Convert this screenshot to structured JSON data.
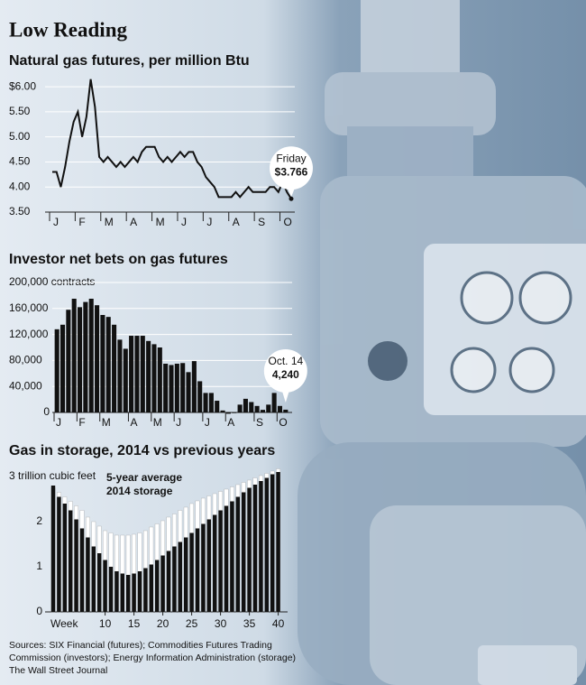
{
  "header": {
    "title": "Low Reading"
  },
  "chart_data": [
    {
      "type": "line",
      "title": "Natural gas futures, per million Btu",
      "categories": [
        "J",
        null,
        null,
        null,
        null,
        null,
        "F",
        null,
        null,
        null,
        null,
        null,
        "M",
        null,
        null,
        null,
        null,
        null,
        "A",
        null,
        null,
        null,
        null,
        null,
        "M",
        null,
        null,
        null,
        null,
        null,
        "J",
        null,
        null,
        null,
        null,
        null,
        "J",
        null,
        null,
        null,
        null,
        null,
        "A",
        null,
        null,
        null,
        null,
        null,
        "S",
        null,
        null,
        null,
        null,
        null,
        "O",
        null,
        null
      ],
      "values": [
        4.3,
        4.3,
        4.0,
        4.4,
        4.9,
        5.3,
        5.5,
        5.0,
        5.4,
        6.15,
        5.6,
        4.6,
        4.5,
        4.6,
        4.5,
        4.4,
        4.5,
        4.4,
        4.5,
        4.6,
        4.5,
        4.7,
        4.8,
        4.8,
        4.8,
        4.6,
        4.5,
        4.6,
        4.5,
        4.6,
        4.7,
        4.6,
        4.7,
        4.7,
        4.5,
        4.4,
        4.2,
        4.1,
        4.0,
        3.8,
        3.8,
        3.8,
        3.8,
        3.9,
        3.8,
        3.9,
        4.0,
        3.9,
        3.9,
        3.9,
        3.9,
        4.0,
        4.0,
        3.9,
        4.1,
        3.9,
        3.766
      ],
      "color": "#111111",
      "ylim": [
        3.5,
        6.2
      ],
      "yticks": [
        {
          "value": 6,
          "label": "$6.00"
        },
        {
          "value": 5.5,
          "label": "5.50"
        },
        {
          "value": 5,
          "label": "5.00"
        },
        {
          "value": 4.5,
          "label": "4.50"
        },
        {
          "value": 4,
          "label": "4.00"
        },
        {
          "value": 3.5,
          "label": "3.50"
        }
      ],
      "grid": true,
      "annotation": "Friday",
      "last_value_label": "$3.766"
    },
    {
      "type": "bar",
      "title": "Investor net bets on gas futures",
      "categories": [
        "J",
        null,
        null,
        null,
        "F",
        null,
        null,
        null,
        "M",
        null,
        null,
        null,
        null,
        "A",
        null,
        null,
        null,
        "M",
        null,
        null,
        null,
        "J",
        null,
        null,
        null,
        null,
        "J",
        null,
        null,
        null,
        "A",
        null,
        null,
        null,
        null,
        "S",
        null,
        null,
        null,
        "O",
        null
      ],
      "values": [
        128000,
        135000,
        158000,
        175000,
        162000,
        170000,
        175000,
        165000,
        150000,
        147000,
        135000,
        112000,
        98000,
        118000,
        118000,
        118000,
        110000,
        105000,
        100000,
        75000,
        73000,
        75000,
        76000,
        62000,
        79000,
        48000,
        30000,
        30000,
        18000,
        3000,
        -2000,
        -1000,
        12000,
        21000,
        16000,
        10000,
        4000,
        12000,
        30000,
        10000,
        4240
      ],
      "color": "#111111",
      "ylim": [
        0,
        200000
      ],
      "yticks": [
        {
          "value": 200000,
          "label": "200,000 contracts"
        },
        {
          "value": 160000,
          "label": "160,000"
        },
        {
          "value": 120000,
          "label": "120,000"
        },
        {
          "value": 80000,
          "label": "80,000"
        },
        {
          "value": 40000,
          "label": "40,000"
        },
        0
      ],
      "grid": true,
      "annotation": "Oct. 14",
      "last_value_label": "4,240"
    },
    {
      "type": "bar",
      "title": "Gas in storage, 2014 vs previous years",
      "barmode": "overlay",
      "x": [
        1,
        2,
        3,
        4,
        5,
        6,
        7,
        8,
        9,
        10,
        11,
        12,
        13,
        14,
        15,
        16,
        17,
        18,
        19,
        20,
        21,
        22,
        23,
        24,
        25,
        26,
        27,
        28,
        29,
        30,
        31,
        32,
        33,
        34,
        35,
        36,
        37,
        38,
        39,
        40
      ],
      "series": [
        {
          "name": "5-year average",
          "color": "#ffffff",
          "values": [
            2.75,
            2.65,
            2.55,
            2.45,
            2.35,
            2.25,
            2.1,
            2.0,
            1.9,
            1.8,
            1.75,
            1.7,
            1.7,
            1.7,
            1.72,
            1.75,
            1.8,
            1.88,
            1.95,
            2.02,
            2.1,
            2.17,
            2.25,
            2.32,
            2.4,
            2.46,
            2.52,
            2.57,
            2.62,
            2.67,
            2.72,
            2.77,
            2.82,
            2.87,
            2.92,
            2.97,
            3.02,
            3.07,
            3.12,
            3.17
          ]
        },
        {
          "name": "2014 storage",
          "color": "#111111",
          "values": [
            2.8,
            2.55,
            2.4,
            2.25,
            2.05,
            1.85,
            1.65,
            1.45,
            1.3,
            1.15,
            1.0,
            0.9,
            0.85,
            0.82,
            0.85,
            0.9,
            0.97,
            1.05,
            1.15,
            1.25,
            1.35,
            1.45,
            1.55,
            1.65,
            1.75,
            1.85,
            1.95,
            2.05,
            2.15,
            2.25,
            2.35,
            2.45,
            2.55,
            2.65,
            2.75,
            2.82,
            2.9,
            2.97,
            3.05,
            3.1
          ]
        }
      ],
      "xlim": [
        0,
        41
      ],
      "xticks": [
        10,
        15,
        20,
        25,
        30,
        35,
        40
      ],
      "x_label": "Week",
      "ylim": [
        0,
        3.2
      ],
      "yticks": [
        {
          "value": 3,
          "label": "3 trillion cubic feet"
        },
        2,
        1,
        0
      ],
      "grid": false
    }
  ],
  "sources": [
    "Sources: SIX Financial (futures); Commodities Futures Trading",
    "Commission (investors); Energy Information Administration (storage)",
    "The Wall Street Journal"
  ]
}
